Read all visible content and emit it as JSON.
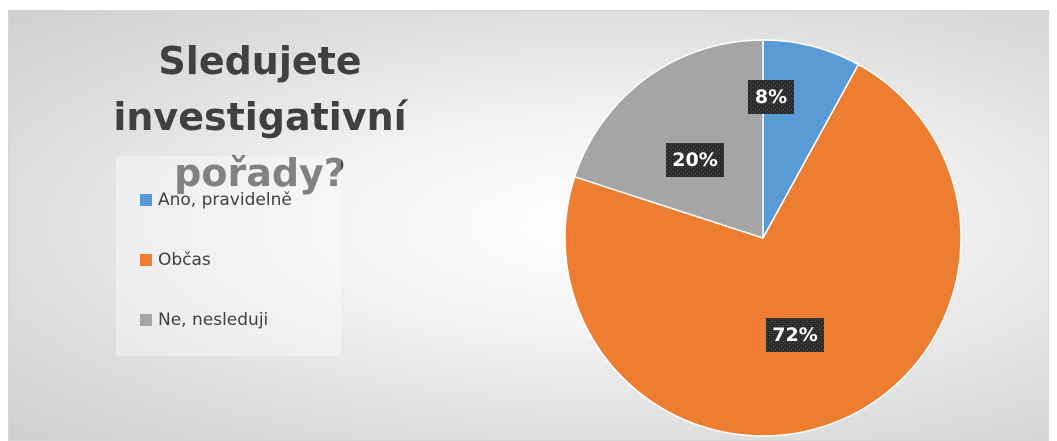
{
  "chart_data": {
    "type": "pie",
    "title": "Sledujete investigativní pořady?",
    "title_lines": [
      "Sledujete investigativní",
      "pořady?"
    ],
    "categories": [
      "Ano, pravidelně",
      "Občas",
      "Ne, nesleduji"
    ],
    "values": [
      8,
      72,
      20
    ],
    "data_labels": [
      "8%",
      "72%",
      "20%"
    ],
    "colors": [
      "#5b9bd5",
      "#ed7d31",
      "#a5a5a5"
    ],
    "legend_position": "left",
    "start_angle_deg": 0,
    "direction": "clockwise"
  }
}
